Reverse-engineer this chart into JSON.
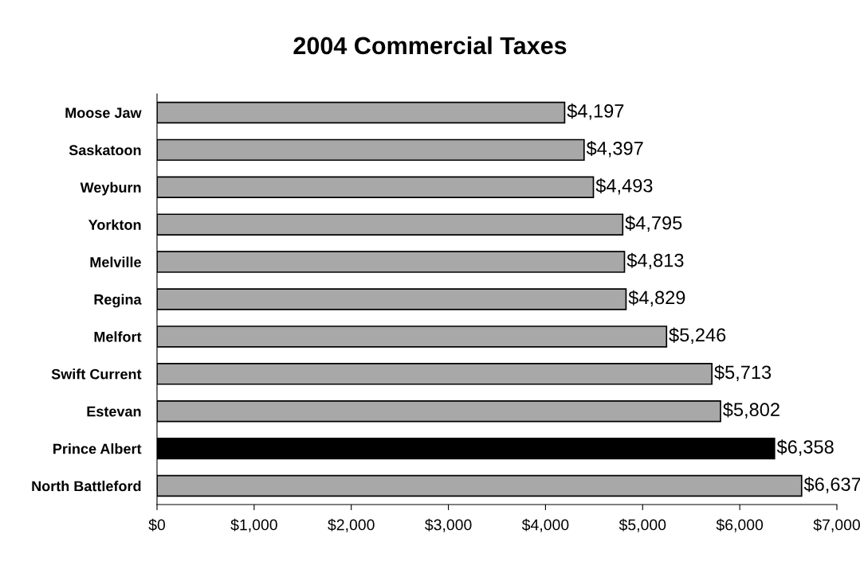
{
  "chart_data": {
    "type": "bar",
    "orientation": "horizontal",
    "title": "2004 Commercial Taxes",
    "categories": [
      "Moose Jaw",
      "Saskatoon",
      "Weyburn",
      "Yorkton",
      "Melville",
      "Regina",
      "Melfort",
      "Swift Current",
      "Estevan",
      "Prince Albert",
      "North Battleford"
    ],
    "values": [
      4197,
      4397,
      4493,
      4795,
      4813,
      4829,
      5246,
      5713,
      5802,
      6358,
      6637
    ],
    "colors": [
      "#a8a8a8",
      "#a8a8a8",
      "#a8a8a8",
      "#a8a8a8",
      "#a8a8a8",
      "#a8a8a8",
      "#a8a8a8",
      "#a8a8a8",
      "#a8a8a8",
      "#000000",
      "#a8a8a8"
    ],
    "value_labels": [
      "$4,197",
      "$4,397",
      "$4,493",
      "$4,795",
      "$4,813",
      "$4,829",
      "$5,246",
      "$5,713",
      "$5,802",
      "$6,358",
      "$6,637"
    ],
    "xlim": [
      0,
      7000
    ],
    "xticks": [
      {
        "value": 0,
        "label": "$0"
      },
      {
        "value": 1000,
        "label": "$1,000"
      },
      {
        "value": 2000,
        "label": "$2,000"
      },
      {
        "value": 3000,
        "label": "$3,000"
      },
      {
        "value": 4000,
        "label": "$4,000"
      },
      {
        "value": 5000,
        "label": "$5,000"
      },
      {
        "value": 6000,
        "label": "$6,000"
      },
      {
        "value": 7000,
        "label": "$7,000"
      }
    ],
    "grid": false,
    "legend": false
  }
}
